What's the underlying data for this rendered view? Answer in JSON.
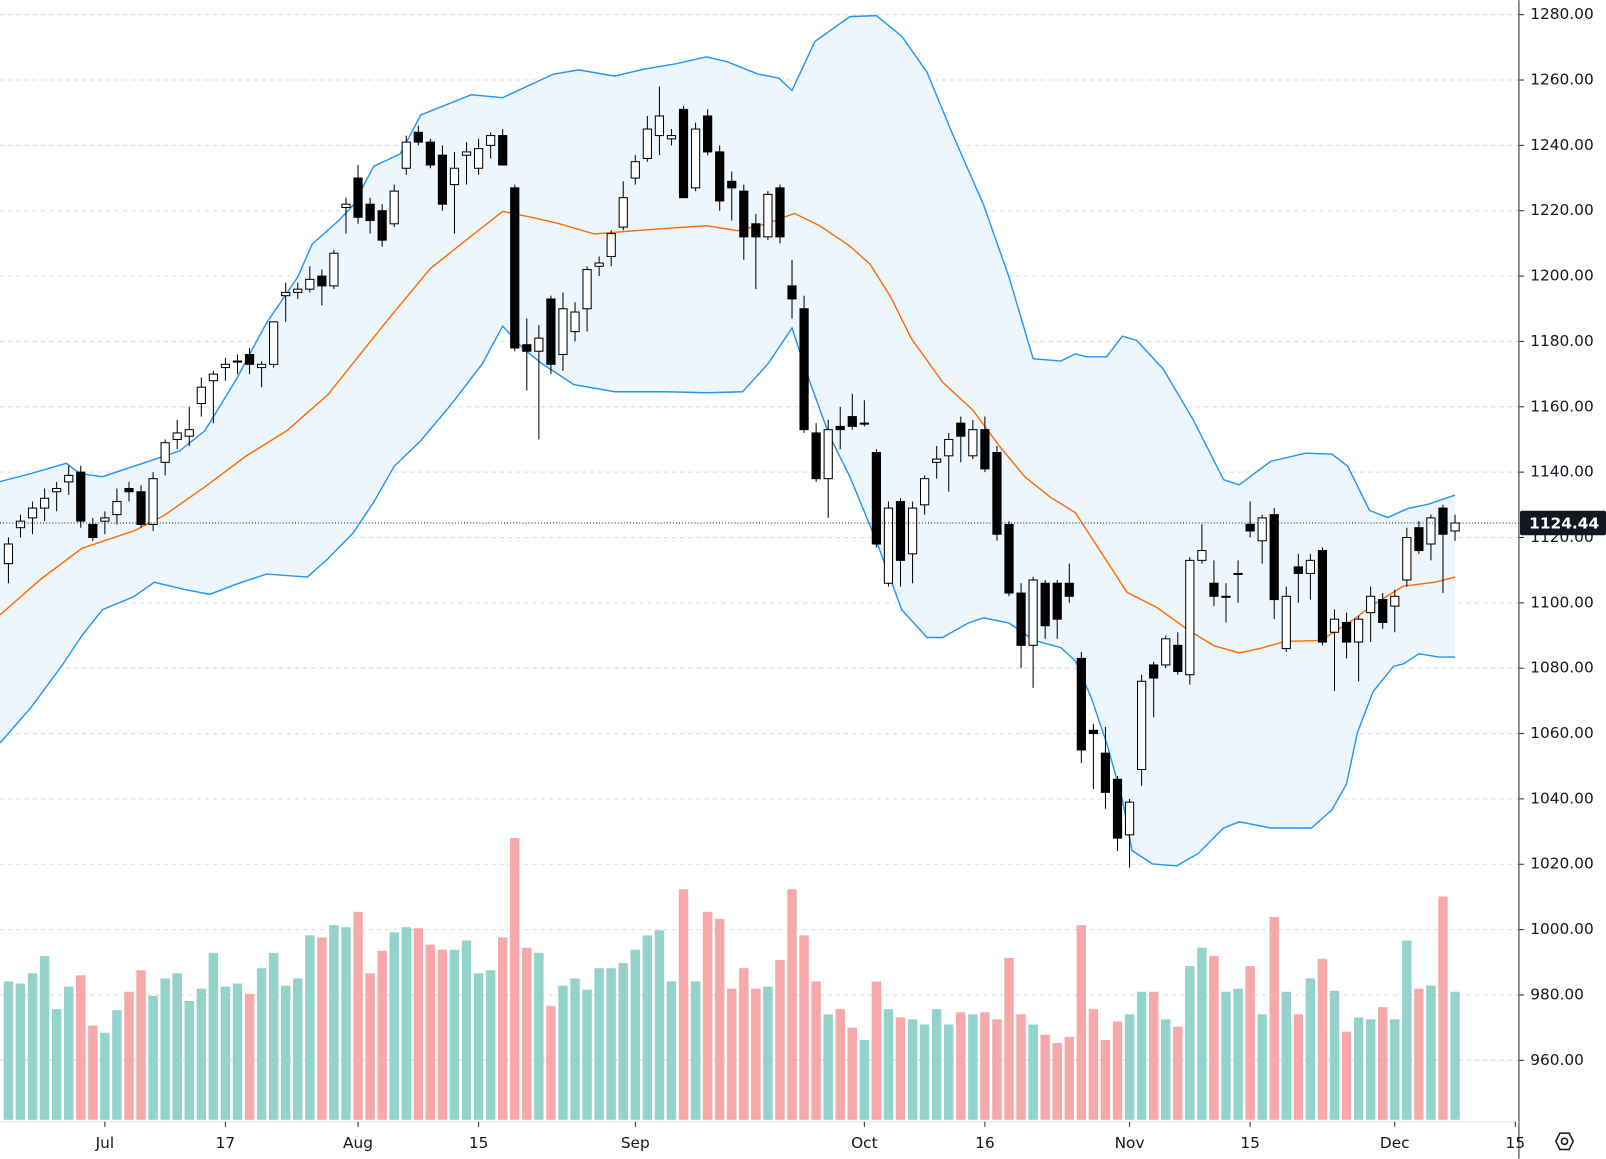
{
  "chart_data": {
    "type": "candlestick",
    "xlim": [
      -0.7,
      125.3
    ],
    "ylim": [
      941.8,
      1284.4
    ],
    "xticks": [
      {
        "value": 8,
        "label": "Jul"
      },
      {
        "value": 18,
        "label": "17"
      },
      {
        "value": 29,
        "label": "Aug"
      },
      {
        "value": 39,
        "label": "15"
      },
      {
        "value": 52,
        "label": "Sep"
      },
      {
        "value": 71,
        "label": "Oct"
      },
      {
        "value": 81,
        "label": "16"
      },
      {
        "value": 93,
        "label": "Nov"
      },
      {
        "value": 103,
        "label": "15"
      },
      {
        "value": 115,
        "label": "Dec"
      },
      {
        "value": 125,
        "label": "15"
      }
    ],
    "yticks": [
      {
        "value": 960,
        "label": "960.00"
      },
      {
        "value": 980,
        "label": "980.00"
      },
      {
        "value": 1000,
        "label": "1000.00"
      },
      {
        "value": 1020,
        "label": "1020.00"
      },
      {
        "value": 1040,
        "label": "1040.00"
      },
      {
        "value": 1060,
        "label": "1060.00"
      },
      {
        "value": 1080,
        "label": "1080.00"
      },
      {
        "value": 1100,
        "label": "1100.00"
      },
      {
        "value": 1120,
        "label": "1120.00"
      },
      {
        "value": 1140,
        "label": "1140.00"
      },
      {
        "value": 1160,
        "label": "1160.00"
      },
      {
        "value": 1180,
        "label": "1180.00"
      },
      {
        "value": 1200,
        "label": "1200.00"
      },
      {
        "value": 1220,
        "label": "1220.00"
      },
      {
        "value": 1240,
        "label": "1240.00"
      },
      {
        "value": 1260,
        "label": "1260.00"
      },
      {
        "value": 1280,
        "label": "1280.00"
      }
    ],
    "grid": true,
    "up_color": "#ffffff",
    "down_color": "#000000",
    "candles": {
      "open": [
        1112,
        1123,
        1126,
        1129,
        1134,
        1137,
        1140,
        1124,
        1125,
        1127,
        1135,
        1134,
        1124,
        1143,
        1150,
        1151,
        1161,
        1168,
        1172,
        1174,
        1176,
        1172,
        1173,
        1194,
        1195,
        1196,
        1200,
        1197,
        1221,
        1230,
        1222,
        1220,
        1216,
        1233,
        1244,
        1241,
        1237,
        1228,
        1237,
        1233,
        1240,
        1243,
        1227,
        1179,
        1177,
        1193,
        1176,
        1183,
        1190,
        1203,
        1206,
        1215,
        1230,
        1236,
        1243,
        1242,
        1251,
        1227,
        1249,
        1238,
        1229,
        1226,
        1216,
        1212,
        1227,
        1197,
        1190,
        1152,
        1138,
        1154,
        1157,
        1155,
        1146,
        1106,
        1131,
        1115,
        1130,
        1143,
        1145,
        1155,
        1145,
        1153,
        1146,
        1124,
        1103,
        1087,
        1106,
        1106,
        1106,
        1083,
        1061,
        1054,
        1046,
        1029,
        1049,
        1081,
        1081,
        1087,
        1078,
        1113,
        1106,
        1102,
        1109,
        1124,
        1119,
        1127,
        1086,
        1111,
        1109,
        1116,
        1091,
        1094,
        1088,
        1097,
        1101,
        1099,
        1107,
        1123,
        1118,
        1129,
        1122
      ],
      "high": [
        1120,
        1127,
        1131,
        1135,
        1137,
        1142,
        1142,
        1126,
        1128,
        1135,
        1137,
        1136,
        1140,
        1150,
        1156,
        1160,
        1169,
        1171,
        1175,
        1176,
        1178,
        1174,
        1186,
        1198,
        1198,
        1203,
        1202,
        1208,
        1224,
        1234,
        1224,
        1222,
        1228,
        1243,
        1246,
        1242,
        1240,
        1238,
        1241,
        1242,
        1244,
        1245,
        1228,
        1187,
        1185,
        1194,
        1195,
        1192,
        1203,
        1206,
        1214,
        1229,
        1237,
        1249,
        1258,
        1245,
        1252,
        1247,
        1251,
        1240,
        1232,
        1228,
        1219,
        1226,
        1228,
        1205,
        1194,
        1155,
        1156,
        1160,
        1164,
        1162,
        1147,
        1131,
        1132,
        1131,
        1139,
        1148,
        1152,
        1157,
        1156,
        1157,
        1148,
        1125,
        1106,
        1108,
        1107,
        1107,
        1112,
        1085,
        1063,
        1062,
        1047,
        1040,
        1078,
        1082,
        1090,
        1091,
        1114,
        1124,
        1113,
        1106,
        1113,
        1131,
        1127,
        1129,
        1105,
        1115,
        1115,
        1117,
        1098,
        1097,
        1096,
        1105,
        1103,
        1104,
        1123,
        1125,
        1127,
        1130,
        1127
      ],
      "low": [
        1106,
        1120,
        1121,
        1125,
        1128,
        1133,
        1123,
        1119,
        1121,
        1124,
        1131,
        1123,
        1122,
        1139,
        1147,
        1148,
        1157,
        1155,
        1168,
        1170,
        1170,
        1166,
        1172,
        1186,
        1193,
        1195,
        1191,
        1196,
        1213,
        1216,
        1213,
        1209,
        1215,
        1231,
        1240,
        1233,
        1220,
        1213,
        1228,
        1231,
        1236,
        1234,
        1177,
        1165,
        1150,
        1170,
        1171,
        1180,
        1183,
        1200,
        1203,
        1214,
        1228,
        1235,
        1237,
        1240,
        1224,
        1226,
        1237,
        1220,
        1217,
        1205,
        1196,
        1211,
        1210,
        1187,
        1152,
        1137,
        1126,
        1147,
        1153,
        1154,
        1117,
        1105,
        1105,
        1106,
        1127,
        1138,
        1134,
        1143,
        1144,
        1140,
        1119,
        1102,
        1080,
        1074,
        1089,
        1089,
        1100,
        1051,
        1043,
        1037,
        1024,
        1019,
        1044,
        1065,
        1080,
        1078,
        1075,
        1112,
        1099,
        1094,
        1100,
        1120,
        1112,
        1095,
        1085,
        1100,
        1101,
        1087,
        1073,
        1083,
        1076,
        1088,
        1092,
        1091,
        1105,
        1115,
        1113,
        1103,
        1119
      ],
      "close": [
        1118,
        1125,
        1129,
        1132,
        1135,
        1139,
        1125,
        1120,
        1126,
        1131,
        1134,
        1124,
        1138,
        1149,
        1152,
        1153,
        1166,
        1170,
        1173,
        1174,
        1173,
        1173,
        1186,
        1195,
        1196,
        1199,
        1197,
        1207,
        1222,
        1218,
        1217,
        1211,
        1226,
        1241,
        1241,
        1234,
        1222,
        1233,
        1238,
        1239,
        1243,
        1234,
        1178,
        1177,
        1181,
        1173,
        1190,
        1189,
        1202,
        1204,
        1213,
        1224,
        1235,
        1245,
        1249,
        1243,
        1224,
        1245,
        1238,
        1223,
        1227,
        1212,
        1212,
        1225,
        1212,
        1193,
        1153,
        1138,
        1153,
        1153,
        1154,
        1155,
        1118,
        1129,
        1113,
        1129,
        1138,
        1144,
        1150,
        1151,
        1153,
        1141,
        1121,
        1103,
        1087,
        1107,
        1093,
        1095,
        1102,
        1055,
        1060,
        1042,
        1028,
        1039,
        1076,
        1077,
        1089,
        1079,
        1113,
        1116,
        1102,
        1102,
        1109,
        1122,
        1126,
        1101,
        1102,
        1109,
        1113,
        1088,
        1095,
        1088,
        1095,
        1102,
        1094,
        1102,
        1120,
        1116,
        1126,
        1121,
        1124.44
      ]
    },
    "volume": [
      135,
      133,
      143,
      160,
      108,
      130,
      141,
      92,
      85,
      107,
      125,
      146,
      121,
      138,
      143,
      116,
      128,
      163,
      130,
      133,
      123,
      148,
      163,
      131,
      138,
      180,
      178,
      190,
      188,
      203,
      143,
      165,
      183,
      188,
      187,
      171,
      166,
      166,
      175,
      143,
      146,
      178,
      275,
      168,
      163,
      111,
      131,
      138,
      127,
      148,
      148,
      153,
      166,
      180,
      185,
      135,
      225,
      135,
      203,
      196,
      128,
      148,
      128,
      130,
      156,
      225,
      180,
      135,
      103,
      108,
      90,
      78,
      135,
      108,
      100,
      98,
      93,
      108,
      93,
      105,
      103,
      105,
      98,
      158,
      103,
      93,
      83,
      75,
      81,
      190,
      108,
      78,
      96,
      103,
      125,
      125,
      98,
      91,
      150,
      168,
      160,
      125,
      128,
      150,
      103,
      198,
      125,
      103,
      138,
      157,
      126,
      86,
      100,
      98,
      110,
      98,
      175,
      128,
      131,
      218,
      125
    ],
    "volume_ylim": [
      0,
      300
    ],
    "volume_up_color": "#93d3cc",
    "volume_down_color": "#f7a8ab",
    "bands": {
      "fill": "#eef6fd",
      "upper": {
        "color": "#2196f3",
        "x": [
          -0.7,
          1.9,
          4.8,
          5.9,
          7.8,
          12.1,
          14.2,
          16.3,
          18.9,
          21.4,
          24.0,
          25.2,
          27.4,
          28.6,
          30.3,
          32.5,
          34.2,
          36.7,
          38.4,
          41,
          45.2,
          47.3,
          50.3,
          52.8,
          55.4,
          57.9,
          59.6,
          62.2,
          63.9,
          65,
          66.9,
          69.8,
          72,
          74.1,
          76.2,
          78.3,
          80.9,
          83,
          85,
          87.3,
          88.5,
          89.4,
          91.1,
          92.4,
          93.6,
          95.8,
          98.3,
          100.8,
          102.1,
          104.7,
          107.6,
          109.8,
          111.1,
          112.9,
          114.4,
          116.1,
          117.8,
          120
        ],
        "values": [
          1137.1,
          1139.6,
          1142.7,
          1139.6,
          1138.6,
          1143.9,
          1146.5,
          1152.7,
          1168.4,
          1185.6,
          1199.7,
          1209.8,
          1217,
          1221.7,
          1233.6,
          1237.4,
          1249.3,
          1253,
          1255.5,
          1254.6,
          1261.8,
          1263.1,
          1261.2,
          1263.4,
          1265,
          1267.1,
          1265.6,
          1261.8,
          1260.6,
          1256.8,
          1271.8,
          1279.4,
          1279.7,
          1273.4,
          1262.4,
          1243.6,
          1221.7,
          1199.7,
          1174.7,
          1174,
          1176.2,
          1175.3,
          1175.3,
          1181.6,
          1180.3,
          1171.5,
          1155.9,
          1137.7,
          1136.1,
          1143.3,
          1145.8,
          1145.5,
          1141.8,
          1128.3,
          1126.1,
          1128.9,
          1130.2,
          1133
        ]
      },
      "middle": {
        "color": "#ff6d00",
        "x": [
          -0.7,
          2.7,
          6.1,
          10.4,
          12.9,
          16.3,
          19.7,
          23.1,
          26.5,
          29.9,
          31.6,
          35.0,
          38.4,
          41.0,
          43.5,
          45.6,
          48.6,
          52.0,
          55.4,
          57.9,
          60.5,
          63.0,
          65.2,
          67.3,
          69.8,
          71.5,
          73.2,
          74.9,
          77.5,
          80.0,
          82.2,
          84.3,
          86.4,
          88.5,
          90.7,
          92.8,
          95.3,
          97.9,
          100.0,
          102.1,
          103.8,
          105.9,
          108.9,
          111.5,
          113.2,
          115.7,
          118.3,
          120.0
        ],
        "values": [
          1096.3,
          1107.3,
          1116.7,
          1122.0,
          1126.7,
          1135.5,
          1144.9,
          1152.7,
          1163.7,
          1179.4,
          1187.2,
          1202.3,
          1212.3,
          1219.8,
          1217.9,
          1216.1,
          1212.9,
          1213.9,
          1214.8,
          1215.4,
          1213.9,
          1216.1,
          1219.2,
          1215.4,
          1209.2,
          1203.5,
          1193.5,
          1180.9,
          1167.5,
          1159.0,
          1148.0,
          1138.6,
          1132.4,
          1127.6,
          1115.1,
          1103.2,
          1098.5,
          1091.6,
          1086.9,
          1084.7,
          1086.0,
          1088.2,
          1088.5,
          1094.7,
          1099.4,
          1105.1,
          1106.3,
          1107.9
        ]
      },
      "lower": {
        "color": "#2196f3",
        "x": [
          -0.7,
          1.9,
          4.4,
          6.1,
          7.8,
          10.4,
          12.1,
          14.6,
          16.7,
          18.9,
          21.4,
          24.8,
          26.5,
          28.6,
          30.3,
          32.0,
          34.2,
          36.7,
          39.3,
          41.0,
          42.7,
          44.3,
          46.9,
          50.3,
          54.5,
          57.9,
          60.9,
          63.0,
          65.0,
          66.4,
          68.1,
          69.8,
          72.0,
          74.1,
          76.2,
          77.5,
          79.6,
          80.9,
          83.0,
          85.1,
          87.3,
          88.5,
          89.8,
          91.1,
          92.4,
          93.2,
          94.9,
          96.9,
          98.7,
          100.8,
          102.1,
          104.7,
          108.1,
          109.8,
          111.0,
          111.9,
          113.2,
          114.9,
          115.7,
          117.0,
          118.7,
          120.0
        ],
        "values": [
          1057.1,
          1068.1,
          1080.6,
          1090.0,
          1097.9,
          1101.9,
          1106.3,
          1104.1,
          1102.6,
          1105.7,
          1108.8,
          1107.9,
          1113.5,
          1121.4,
          1130.8,
          1141.8,
          1149.6,
          1160.6,
          1173.1,
          1184.7,
          1177.8,
          1173.1,
          1166.8,
          1164.6,
          1164.6,
          1164.3,
          1164.6,
          1173.1,
          1184.1,
          1168.4,
          1151.2,
          1138.6,
          1118.9,
          1097.9,
          1089.4,
          1089.4,
          1093.8,
          1095.4,
          1093.8,
          1088.5,
          1086.3,
          1082.2,
          1071.2,
          1057.1,
          1039.9,
          1024.2,
          1020.1,
          1019.5,
          1023.3,
          1031.1,
          1033.0,
          1031.1,
          1031.1,
          1036.7,
          1044.6,
          1060.3,
          1072.8,
          1080.6,
          1081.3,
          1084.4,
          1083.4,
          1083.4
        ]
      }
    }
  }
}
